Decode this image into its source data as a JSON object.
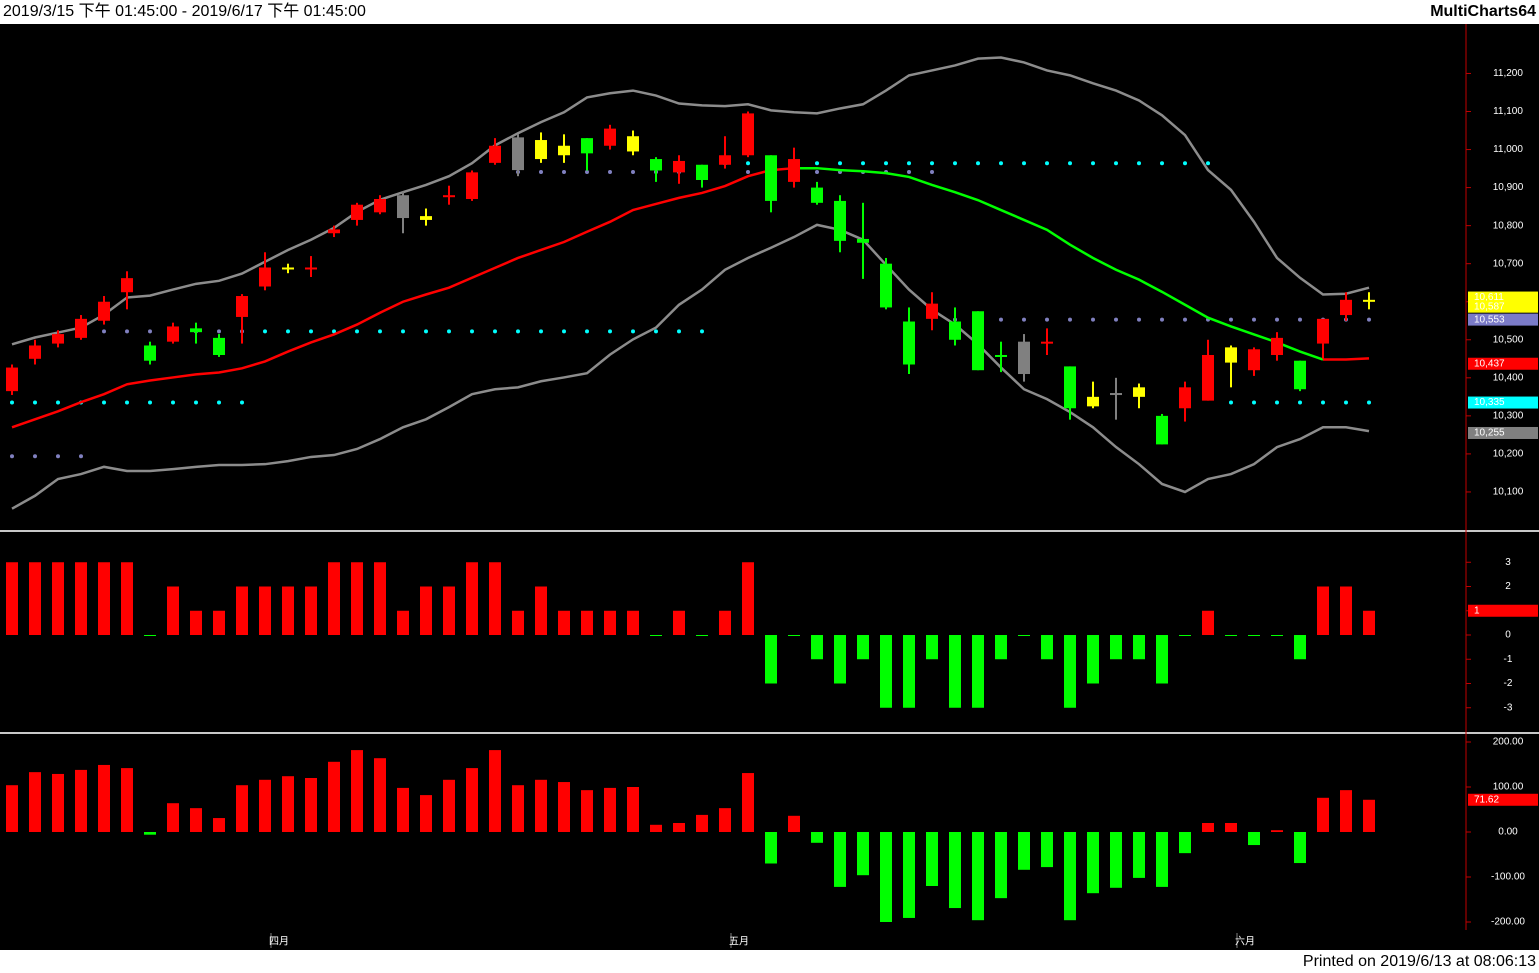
{
  "header": {
    "range": "2019/3/15 下午 01:45:00 - 2019/6/17 下午 01:45:00",
    "brand": "MultiCharts64"
  },
  "footer": {
    "printed": "Printed on 2019/6/13 at 08:06:13"
  },
  "chart_data": [
    {
      "type": "candlestick",
      "categories": [
        null,
        null,
        null,
        null,
        null,
        null,
        null,
        null,
        null,
        null,
        null,
        "四月",
        null,
        null,
        null,
        null,
        null,
        null,
        null,
        null,
        null,
        null,
        null,
        null,
        null,
        null,
        null,
        null,
        null,
        null,
        null,
        "五月",
        null,
        null,
        null,
        null,
        null,
        null,
        null,
        null,
        null,
        null,
        null,
        null,
        null,
        null,
        null,
        null,
        null,
        null,
        null,
        null,
        null,
        "六月",
        null,
        null,
        null,
        null,
        null,
        null
      ],
      "open": [
        10365,
        10450,
        10490,
        10505,
        10550,
        10625,
        10485,
        10495,
        10530,
        10505,
        10560,
        10640,
        10690,
        10685,
        10780,
        10815,
        10835,
        10880,
        10825,
        10875,
        10870,
        10965,
        11032,
        11025,
        11010,
        11030,
        11010,
        11035,
        10975,
        10940,
        10960,
        10960,
        10985,
        10985,
        10915,
        10900,
        10865,
        10765,
        10700,
        10548,
        10555,
        10548,
        10575,
        10460,
        10495,
        10490,
        10430,
        10350,
        10360,
        10375,
        10300,
        10320,
        10340,
        10480,
        10420,
        10460,
        10445,
        10490,
        10565,
        10605
      ],
      "close": [
        10427,
        10485,
        10515,
        10555,
        10600,
        10662,
        10445,
        10535,
        10520,
        10460,
        10615,
        10690,
        10690,
        10690,
        10790,
        10855,
        10870,
        10820,
        10815,
        10880,
        10940,
        11010,
        10946,
        10975,
        10985,
        10990,
        11055,
        10995,
        10945,
        10970,
        10920,
        10985,
        11095,
        10865,
        10975,
        10860,
        10760,
        10755,
        10585,
        10435,
        10595,
        10500,
        10420,
        10455,
        10410,
        10495,
        10320,
        10325,
        10355,
        10350,
        10225,
        10375,
        10460,
        10440,
        10475,
        10505,
        10370,
        10555,
        10605,
        10605
      ],
      "high": [
        10435,
        10500,
        10525,
        10565,
        10615,
        10680,
        10495,
        10545,
        10545,
        10515,
        10620,
        10730,
        10700,
        10720,
        10800,
        10860,
        10880,
        10890,
        10845,
        10905,
        10945,
        11030,
        11040,
        11045,
        11040,
        11030,
        11065,
        11050,
        10980,
        10985,
        10960,
        11035,
        11100,
        10985,
        11005,
        10915,
        10880,
        10860,
        10715,
        10585,
        10625,
        10585,
        10575,
        10495,
        10515,
        10530,
        10430,
        10390,
        10400,
        10385,
        10305,
        10390,
        10500,
        10485,
        10480,
        10520,
        10445,
        10555,
        10625,
        10625
      ],
      "low": [
        10355,
        10435,
        10480,
        10500,
        10540,
        10580,
        10435,
        10490,
        10490,
        10455,
        10490,
        10630,
        10675,
        10665,
        10770,
        10800,
        10830,
        10780,
        10800,
        10855,
        10865,
        10960,
        10930,
        10965,
        10965,
        10945,
        11000,
        10985,
        10915,
        10910,
        10900,
        10950,
        10980,
        10835,
        10900,
        10855,
        10730,
        10660,
        10580,
        10410,
        10525,
        10485,
        10420,
        10415,
        10390,
        10460,
        10290,
        10320,
        10290,
        10320,
        10225,
        10285,
        10340,
        10375,
        10405,
        10445,
        10365,
        10450,
        10550,
        10580
      ],
      "bar_colors": [
        "#ff0000",
        "#ff0000",
        "#ff0000",
        "#ff0000",
        "#ff0000",
        "#ff0000",
        "#00ff00",
        "#ff0000",
        "#00ff00",
        "#00ff00",
        "#ff0000",
        "#ff0000",
        "#ffff00",
        "#ff0000",
        "#ff0000",
        "#ff0000",
        "#ff0000",
        "#808080",
        "#ffff00",
        "#ff0000",
        "#ff0000",
        "#ff0000",
        "#808080",
        "#ffff00",
        "#ffff00",
        "#00ff00",
        "#ff0000",
        "#ffff00",
        "#00ff00",
        "#ff0000",
        "#00ff00",
        "#ff0000",
        "#ff0000",
        "#00ff00",
        "#ff0000",
        "#00ff00",
        "#00ff00",
        "#00ff00",
        "#00ff00",
        "#00ff00",
        "#ff0000",
        "#00ff00",
        "#00ff00",
        "#00ff00",
        "#808080",
        "#ff0000",
        "#00ff00",
        "#ffff00",
        "#808080",
        "#ffff00",
        "#00ff00",
        "#ff0000",
        "#ff0000",
        "#ffff00",
        "#ff0000",
        "#ff0000",
        "#00ff00",
        "#ff0000",
        "#ff0000",
        "#ffff00"
      ],
      "lines": [
        {
          "color": "#8c8c8c",
          "values": [
            10488,
            10506,
            10519,
            10532,
            10566,
            10611,
            10616,
            10632,
            10647,
            10655,
            10674,
            10705,
            10736,
            10763,
            10794,
            10836,
            10868,
            10888,
            10907,
            10930,
            10964,
            11011,
            11043,
            11072,
            11098,
            11137,
            11148,
            11155,
            11142,
            11121,
            11116,
            11114,
            11119,
            11103,
            11098,
            11095,
            11108,
            11119,
            11155,
            11195,
            11208,
            11221,
            11239,
            11242,
            11229,
            11208,
            11195,
            11174,
            11155,
            11129,
            11090,
            11038,
            10946,
            10894,
            10810,
            10715,
            10663,
            10619,
            10621,
            10637
          ]
        },
        {
          "color": "#8c8c8c",
          "values": [
            10056,
            10090,
            10134,
            10147,
            10166,
            10155,
            10155,
            10160,
            10166,
            10171,
            10171,
            10173,
            10181,
            10192,
            10197,
            10213,
            10239,
            10270,
            10291,
            10323,
            10357,
            10370,
            10375,
            10391,
            10401,
            10412,
            10461,
            10501,
            10532,
            10592,
            10632,
            10684,
            10715,
            10742,
            10770,
            10802,
            10789,
            10763,
            10697,
            10632,
            10579,
            10540,
            10488,
            10427,
            10370,
            10344,
            10310,
            10270,
            10218,
            10173,
            10121,
            10100,
            10134,
            10147,
            10173,
            10218,
            10239,
            10270,
            10270,
            10260
          ]
        },
        {
          "color": "#ff0000",
          "values": [
            10270,
            10291,
            10312,
            10336,
            10357,
            10383,
            10393,
            10401,
            10409,
            10414,
            10425,
            10443,
            10469,
            10493,
            10514,
            10540,
            10571,
            10600,
            10619,
            10637,
            10663,
            10689,
            10715,
            10736,
            10757,
            10784,
            10810,
            10841,
            10857,
            10873,
            10886,
            10904,
            10930,
            10946,
            10951,
            null,
            null,
            null,
            null,
            null,
            null,
            null,
            null,
            null,
            null,
            null,
            null,
            null,
            null,
            null,
            null,
            null,
            null,
            null,
            null,
            null,
            null,
            10448,
            10448,
            10451
          ]
        },
        {
          "color": "#00ff00",
          "values": [
            null,
            null,
            null,
            null,
            null,
            null,
            null,
            null,
            null,
            null,
            null,
            null,
            null,
            null,
            null,
            null,
            null,
            null,
            null,
            null,
            null,
            null,
            null,
            null,
            null,
            null,
            null,
            null,
            null,
            null,
            null,
            null,
            null,
            null,
            10951,
            10951,
            10946,
            10943,
            10938,
            10928,
            10907,
            10888,
            10867,
            10841,
            10815,
            10789,
            10750,
            10715,
            10684,
            10658,
            10626,
            10592,
            10558,
            10535,
            10514,
            10493,
            10469,
            10448,
            null,
            null
          ]
        }
      ],
      "levels": [
        {
          "value": 10335,
          "from": 0,
          "to": 10,
          "color": "#00ffff"
        },
        {
          "value": 10194,
          "from": 0,
          "to": 3,
          "color": "#8080c0"
        },
        {
          "value": 10522,
          "from": 4,
          "to": 10,
          "color": "#8080c0"
        },
        {
          "value": 10522,
          "from": 11,
          "to": 30,
          "color": "#00ffff"
        },
        {
          "value": 10941,
          "from": 22,
          "to": 30,
          "color": "#8080c0"
        },
        {
          "value": 10964,
          "from": 31,
          "to": 52,
          "color": "#00ffff"
        },
        {
          "value": 10941,
          "from": 32,
          "to": 40,
          "color": "#8080c0"
        },
        {
          "value": 10553,
          "from": 41,
          "to": 59,
          "color": "#8080c0"
        },
        {
          "value": 10335,
          "from": 53,
          "to": 59,
          "color": "#00ffff"
        }
      ],
      "tags": [
        {
          "value": 10611,
          "label": "10,611",
          "color": "#ffff00"
        },
        {
          "value": 10587,
          "label": "10,587",
          "color": "#ffff00"
        },
        {
          "value": 10553,
          "label": "10,553",
          "color": "#7b7bc8"
        },
        {
          "value": 10437,
          "label": "10,437",
          "color": "#ff0000"
        },
        {
          "value": 10335,
          "label": "10,335",
          "color": "#00ffff"
        },
        {
          "value": 10255,
          "label": "10,255",
          "color": "#808080"
        }
      ],
      "ylim": [
        10000,
        11330
      ],
      "yticks": [
        {
          "value": 10100,
          "label": "10,100"
        },
        {
          "value": 10200,
          "label": "10,200"
        },
        {
          "value": 10300,
          "label": "10,300"
        },
        {
          "value": 10400,
          "label": "10,400"
        },
        {
          "value": 10500,
          "label": "10,500"
        },
        {
          "value": 10600,
          "label": "10,600"
        },
        {
          "value": 10700,
          "label": "10,700"
        },
        {
          "value": 10800,
          "label": "10,800"
        },
        {
          "value": 10900,
          "label": "10,900"
        },
        {
          "value": 11000,
          "label": "11,000"
        },
        {
          "value": 11100,
          "label": "11,100"
        },
        {
          "value": 11200,
          "label": "11,200"
        }
      ]
    },
    {
      "type": "histogram-bar",
      "values": [
        3,
        3,
        3,
        3,
        3,
        3,
        0,
        2,
        1,
        1,
        2,
        2,
        2,
        2,
        3,
        3,
        3,
        1,
        2,
        2,
        3,
        3,
        1,
        2,
        1,
        1,
        1,
        1,
        0,
        1,
        0,
        1,
        3,
        -2,
        0,
        -1,
        -2,
        -1,
        -3,
        -3,
        -1,
        -3,
        -3,
        -1,
        0,
        -1,
        -3,
        -2,
        -1,
        -1,
        -2,
        0,
        1,
        0,
        0,
        0,
        -1,
        2,
        2,
        1
      ],
      "up_color": "#ff0000",
      "down_color": "#00ff00",
      "tags": [
        {
          "value": 1,
          "label": "1",
          "color": "#ff0000"
        }
      ],
      "ylim": [
        -4,
        4
      ],
      "yticks": [
        3,
        2,
        1,
        0,
        -1,
        -2,
        -3
      ]
    },
    {
      "type": "histogram-bar",
      "values": [
        104,
        133,
        129,
        138,
        149,
        142,
        -6,
        64,
        53,
        31,
        104,
        116,
        124,
        120,
        156,
        182,
        164,
        98,
        82,
        116,
        142,
        182,
        104,
        116,
        111,
        93,
        98,
        100,
        16,
        20,
        38,
        53,
        131,
        -70,
        36,
        -24,
        -122,
        -96,
        -200,
        -191,
        -120,
        -169,
        -196,
        -147,
        -84,
        -78,
        -196,
        -136,
        -124,
        -102,
        -122,
        -47,
        20,
        20,
        -29,
        4,
        -69,
        76,
        93,
        71.62
      ],
      "up_color": "#ff0000",
      "down_color": "#00ff00",
      "tags": [
        {
          "value": 71.62,
          "label": "71.62",
          "color": "#ff0000"
        }
      ],
      "ylim": [
        -220,
        220
      ],
      "yticks": [
        {
          "value": 200,
          "label": "200.00"
        },
        {
          "value": 100,
          "label": "100.00"
        },
        {
          "value": 0,
          "label": "0.00"
        },
        {
          "value": -100,
          "label": "-100.00"
        },
        {
          "value": -200,
          "label": "-200.00"
        }
      ]
    }
  ]
}
